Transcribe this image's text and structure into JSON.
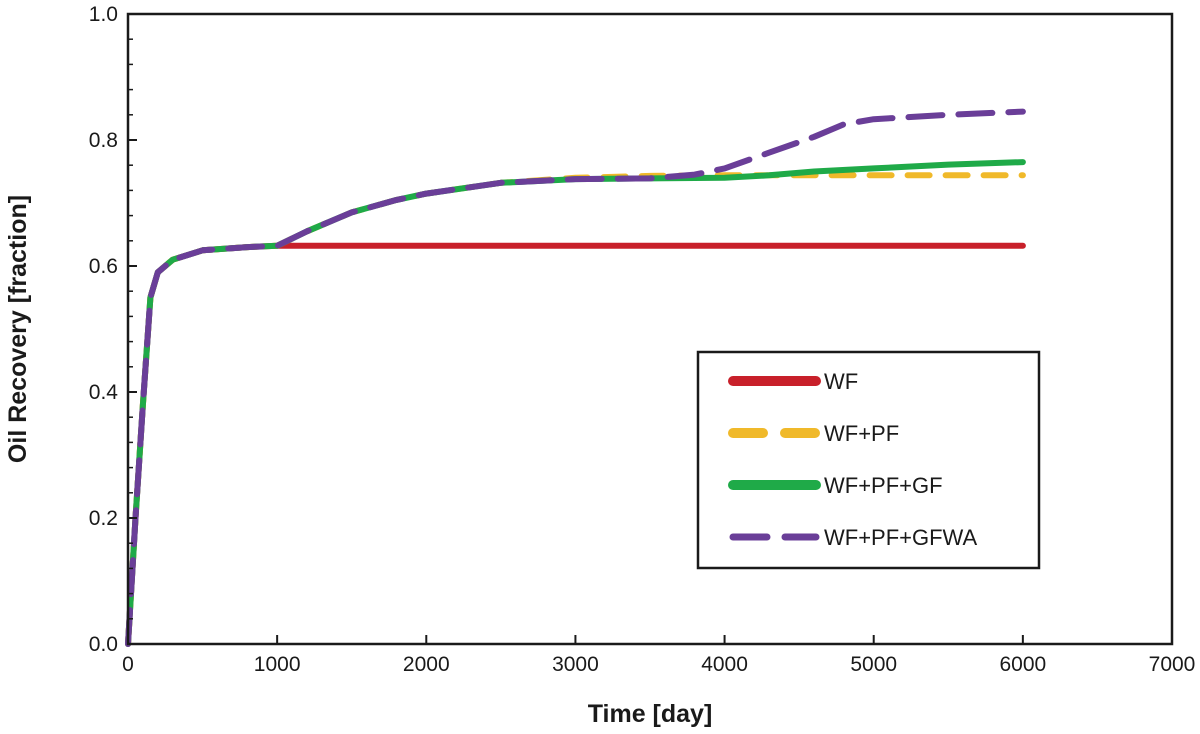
{
  "chart_data": {
    "type": "line",
    "title": "",
    "xlabel": "Time [day]",
    "ylabel": "Oil Recovery [fraction]",
    "xlim": [
      0,
      7000
    ],
    "ylim": [
      0,
      1.0
    ],
    "x_ticks": [
      0,
      1000,
      2000,
      3000,
      4000,
      5000,
      6000,
      7000
    ],
    "x_tick_labels": [
      "0",
      "1000",
      "2000",
      "3000",
      "4000",
      "5000",
      "6000",
      "7000"
    ],
    "y_ticks": [
      0,
      0.2,
      0.4,
      0.6,
      0.8,
      1.0
    ],
    "y_tick_labels": [
      "0.0",
      "0.2",
      "0.4",
      "0.6",
      "0.8",
      "1.0"
    ],
    "grid": false,
    "legend_position": "center-right",
    "series": [
      {
        "name": "WF",
        "color": "#c8202a",
        "style": "solid",
        "x": [
          0,
          50,
          100,
          150,
          200,
          300,
          500,
          800,
          1000,
          2000,
          3000,
          4000,
          5000,
          6000
        ],
        "y": [
          0,
          0.2,
          0.38,
          0.55,
          0.59,
          0.61,
          0.625,
          0.63,
          0.632,
          0.632,
          0.632,
          0.632,
          0.632,
          0.632
        ]
      },
      {
        "name": "WF+PF",
        "color": "#f0b92a",
        "style": "dashed",
        "x": [
          0,
          50,
          100,
          150,
          200,
          300,
          500,
          800,
          1000,
          1200,
          1500,
          1800,
          2000,
          2500,
          3000,
          3500,
          4000,
          4500,
          5000,
          5500,
          6000
        ],
        "y": [
          0,
          0.2,
          0.38,
          0.55,
          0.59,
          0.61,
          0.625,
          0.63,
          0.632,
          0.655,
          0.685,
          0.705,
          0.715,
          0.732,
          0.74,
          0.743,
          0.744,
          0.744,
          0.744,
          0.744,
          0.744
        ]
      },
      {
        "name": "WF+PF+GF",
        "color": "#1faa48",
        "style": "solid",
        "x": [
          0,
          50,
          100,
          150,
          200,
          300,
          500,
          800,
          1000,
          1200,
          1500,
          1800,
          2000,
          2500,
          3000,
          3500,
          4000,
          4300,
          4600,
          5000,
          5500,
          6000
        ],
        "y": [
          0,
          0.2,
          0.38,
          0.55,
          0.59,
          0.61,
          0.625,
          0.63,
          0.632,
          0.655,
          0.685,
          0.705,
          0.715,
          0.732,
          0.738,
          0.739,
          0.74,
          0.744,
          0.75,
          0.755,
          0.761,
          0.765
        ]
      },
      {
        "name": "WF+PF+GFWA",
        "color": "#6a3e98",
        "style": "long-dashed",
        "x": [
          0,
          50,
          100,
          150,
          200,
          300,
          500,
          800,
          1000,
          1200,
          1500,
          1800,
          2000,
          2500,
          3000,
          3500,
          3800,
          4000,
          4300,
          4600,
          4800,
          5000,
          5500,
          6000
        ],
        "y": [
          0,
          0.2,
          0.38,
          0.55,
          0.59,
          0.61,
          0.625,
          0.63,
          0.632,
          0.655,
          0.685,
          0.705,
          0.715,
          0.732,
          0.738,
          0.739,
          0.745,
          0.755,
          0.78,
          0.805,
          0.825,
          0.833,
          0.84,
          0.845
        ]
      }
    ]
  }
}
